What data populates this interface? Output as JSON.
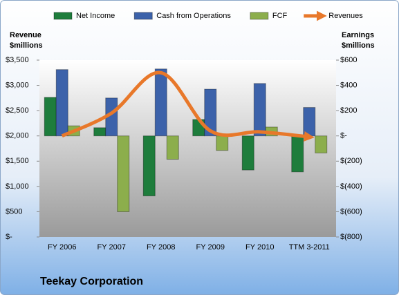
{
  "chart_data": {
    "type": "bar",
    "title": "Teekay Corporation",
    "y_label": [
      "Revenue",
      "$millions"
    ],
    "y2_label": [
      "Earnings",
      "$millions"
    ],
    "categories": [
      "FY 2006",
      "FY 2007",
      "FY 2008",
      "FY 2009",
      "FY 2010",
      "TTM 3-2011"
    ],
    "series": [
      {
        "name": "Net Income",
        "color": "#1e7d3c",
        "axis": "y2",
        "values": [
          305,
          65,
          -475,
          130,
          -270,
          -285
        ]
      },
      {
        "name": "Cash from Operations",
        "color": "#3c62aa",
        "axis": "y2",
        "values": [
          525,
          300,
          530,
          370,
          415,
          225
        ]
      },
      {
        "name": "FCF",
        "color": "#8cae4c",
        "axis": "y2",
        "values": [
          80,
          -600,
          -185,
          -115,
          70,
          -135
        ]
      },
      {
        "name": "Revenues",
        "color": "#e8782a",
        "type": "line",
        "axis": "y",
        "values": [
          2000,
          2450,
          3250,
          2100,
          2080,
          1980
        ]
      }
    ],
    "ylim": [
      0,
      3500
    ],
    "yticks": [
      {
        "value": 0,
        "label": "$-"
      },
      {
        "value": 500,
        "label": "$500"
      },
      {
        "value": 1000,
        "label": "$1,000"
      },
      {
        "value": 1500,
        "label": "$1,500"
      },
      {
        "value": 2000,
        "label": "$2,000"
      },
      {
        "value": 2500,
        "label": "$2,500"
      },
      {
        "value": 3000,
        "label": "$3,000"
      },
      {
        "value": 3500,
        "label": "$3,500"
      }
    ],
    "y2lim": [
      -800,
      600
    ],
    "y2ticks": [
      {
        "value": -800,
        "label": "$(800)"
      },
      {
        "value": -600,
        "label": "$(600)"
      },
      {
        "value": -400,
        "label": "$(400)"
      },
      {
        "value": -200,
        "label": "$(200)"
      },
      {
        "value": 0,
        "label": "$-"
      },
      {
        "value": 200,
        "label": "$200"
      },
      {
        "value": 400,
        "label": "$400"
      },
      {
        "value": 600,
        "label": "$600"
      }
    ]
  }
}
